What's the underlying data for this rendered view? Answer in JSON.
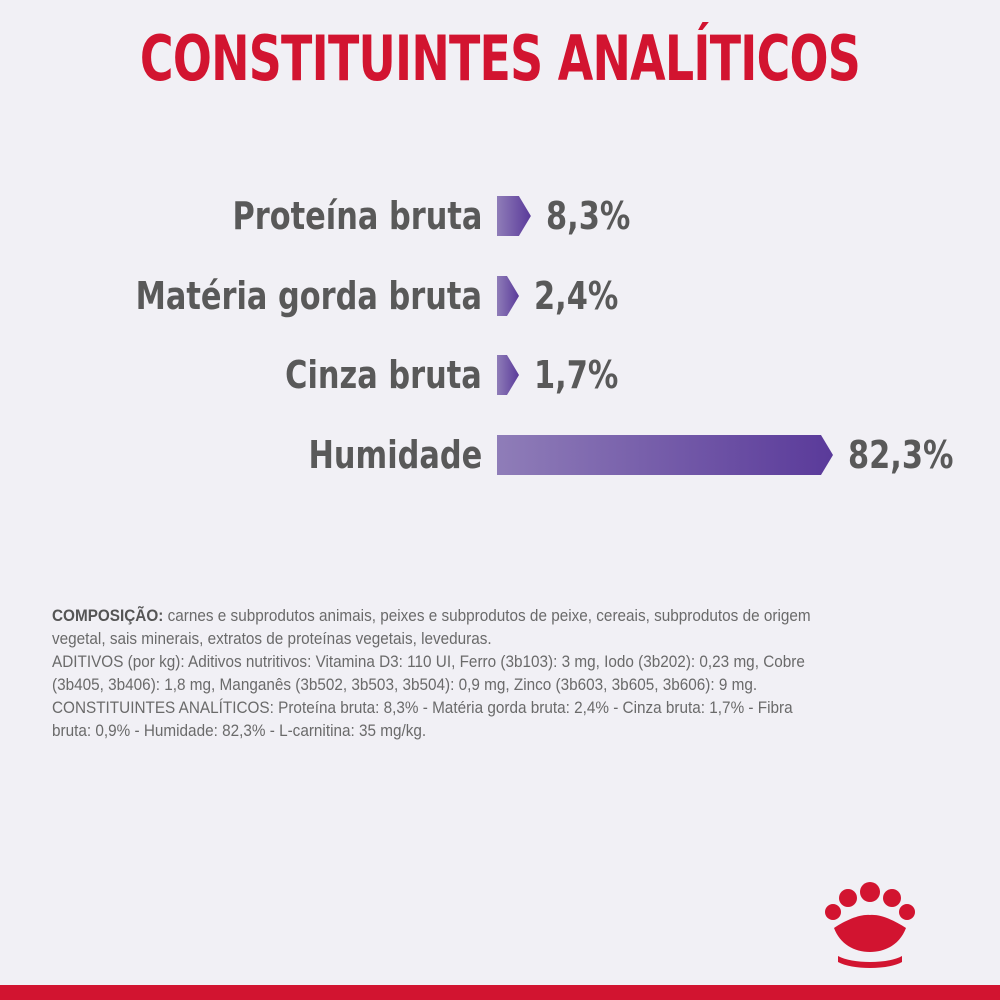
{
  "title": "CONSTITUINTES ANALÍTICOS",
  "chart_data": {
    "type": "bar",
    "orientation": "horizontal",
    "categories": [
      "Proteína bruta",
      "Matéria gorda bruta",
      "Cinza bruta",
      "Humidade"
    ],
    "values": [
      8.3,
      2.4,
      1.7,
      82.3
    ],
    "value_labels": [
      "8,3%",
      "2,4%",
      "1,7%",
      "82,3%"
    ],
    "unit": "%",
    "xlim": [
      0,
      82.3
    ],
    "colors": {
      "bar_start": "#8f7db8",
      "bar_end": "#5a3a9a"
    }
  },
  "composition": {
    "label": "COMPOSIÇÃO:",
    "text": "carnes e subprodutos animais, peixes e subprodutos de peixe, cereais, subprodutos de origem vegetal, sais minerais, extratos de proteínas vegetais, leveduras.",
    "additives": "ADITIVOS (por kg): Aditivos nutritivos: Vitamina D3: 110 UI, Ferro (3b103): 3 mg, Iodo (3b202): 0,23 mg, Cobre (3b405, 3b406): 1,8 mg, Manganês (3b502, 3b503, 3b504): 0,9 mg, Zinco (3b603, 3b605, 3b606): 9 mg.",
    "analytical": "CONSTITUINTES ANALÍTICOS: Proteína bruta: 8,3% - Matéria gorda bruta: 2,4% - Cinza bruta: 1,7% - Fibra bruta: 0,9% - Humidade: 82,3% - L-carnitina: 35 mg/kg."
  },
  "brand": {
    "logo": "royal-canin-crown-logo",
    "color": "#d21430"
  }
}
